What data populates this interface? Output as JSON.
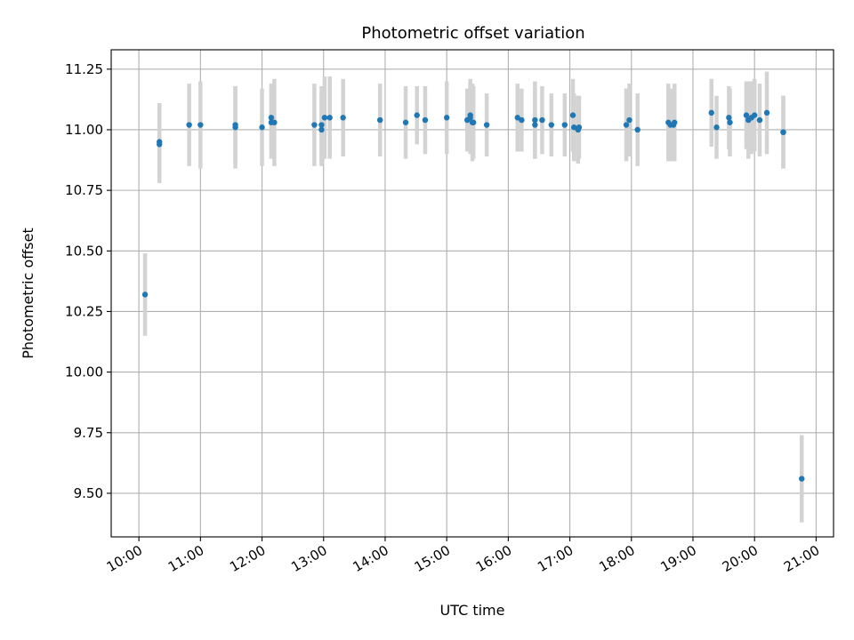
{
  "chart_data": {
    "type": "scatter",
    "title": "Photometric offset variation",
    "xlabel": "UTC time",
    "ylabel": "Photometric offset",
    "x_ticks": [
      "10:00",
      "11:00",
      "12:00",
      "13:00",
      "14:00",
      "15:00",
      "16:00",
      "17:00",
      "18:00",
      "19:00",
      "20:00",
      "21:00"
    ],
    "y_ticks": [
      "9.50",
      "9.75",
      "10.00",
      "10.25",
      "10.50",
      "10.75",
      "11.00",
      "11.25"
    ],
    "xlim": [
      "09:33",
      "21:17"
    ],
    "ylim": [
      9.32,
      11.33
    ],
    "grid": true,
    "point_color": "#1f77b4",
    "errorbar_color": "#d3d3d3",
    "series": [
      {
        "x": [
          "10:06",
          "10:20",
          "10:20",
          "10:49",
          "11:00",
          "11:34",
          "11:34",
          "12:00",
          "12:09",
          "12:09",
          "12:12",
          "12:51",
          "12:58",
          "12:58",
          "13:01",
          "13:06",
          "13:19",
          "13:55",
          "14:20",
          "14:31",
          "14:39",
          "15:00",
          "15:20",
          "15:23",
          "15:23",
          "15:25",
          "15:26",
          "15:39",
          "16:09",
          "16:13",
          "16:26",
          "16:26",
          "16:33",
          "16:42",
          "16:55",
          "17:03",
          "17:04",
          "17:08",
          "17:09",
          "17:55",
          "17:58",
          "18:06",
          "18:36",
          "18:38",
          "18:41",
          "18:42",
          "19:18",
          "19:23",
          "19:35",
          "19:36",
          "19:52",
          "19:54",
          "19:57",
          "20:00",
          "20:05",
          "20:12",
          "20:28",
          "20:28",
          "20:46"
        ],
        "y": [
          10.32,
          10.94,
          10.95,
          11.02,
          11.02,
          11.01,
          11.02,
          11.01,
          11.05,
          11.03,
          11.03,
          11.02,
          11.0,
          11.02,
          11.05,
          11.05,
          11.05,
          11.04,
          11.03,
          11.06,
          11.04,
          11.05,
          11.04,
          11.06,
          11.05,
          11.03,
          11.03,
          11.02,
          11.05,
          11.04,
          11.02,
          11.04,
          11.04,
          11.02,
          11.02,
          11.06,
          11.01,
          11.0,
          11.01,
          11.02,
          11.04,
          11.0,
          11.03,
          11.02,
          11.02,
          11.03,
          11.07,
          11.01,
          11.05,
          11.03,
          11.06,
          11.04,
          11.05,
          11.06,
          11.04,
          11.07,
          10.99,
          10.99,
          9.56
        ],
        "error": [
          0.17,
          0.16,
          0.16,
          0.17,
          0.18,
          0.17,
          0.16,
          0.16,
          0.14,
          0.15,
          0.18,
          0.17,
          0.15,
          0.16,
          0.17,
          0.17,
          0.16,
          0.15,
          0.15,
          0.12,
          0.14,
          0.15,
          0.13,
          0.15,
          0.15,
          0.16,
          0.15,
          0.13,
          0.14,
          0.13,
          0.14,
          0.16,
          0.14,
          0.13,
          0.13,
          0.15,
          0.14,
          0.14,
          0.13,
          0.15,
          0.15,
          0.15,
          0.16,
          0.15,
          0.14,
          0.16,
          0.14,
          0.13,
          0.13,
          0.14,
          0.14,
          0.16,
          0.15,
          0.15,
          0.15,
          0.17,
          0.15,
          0.15,
          0.18
        ]
      }
    ]
  }
}
